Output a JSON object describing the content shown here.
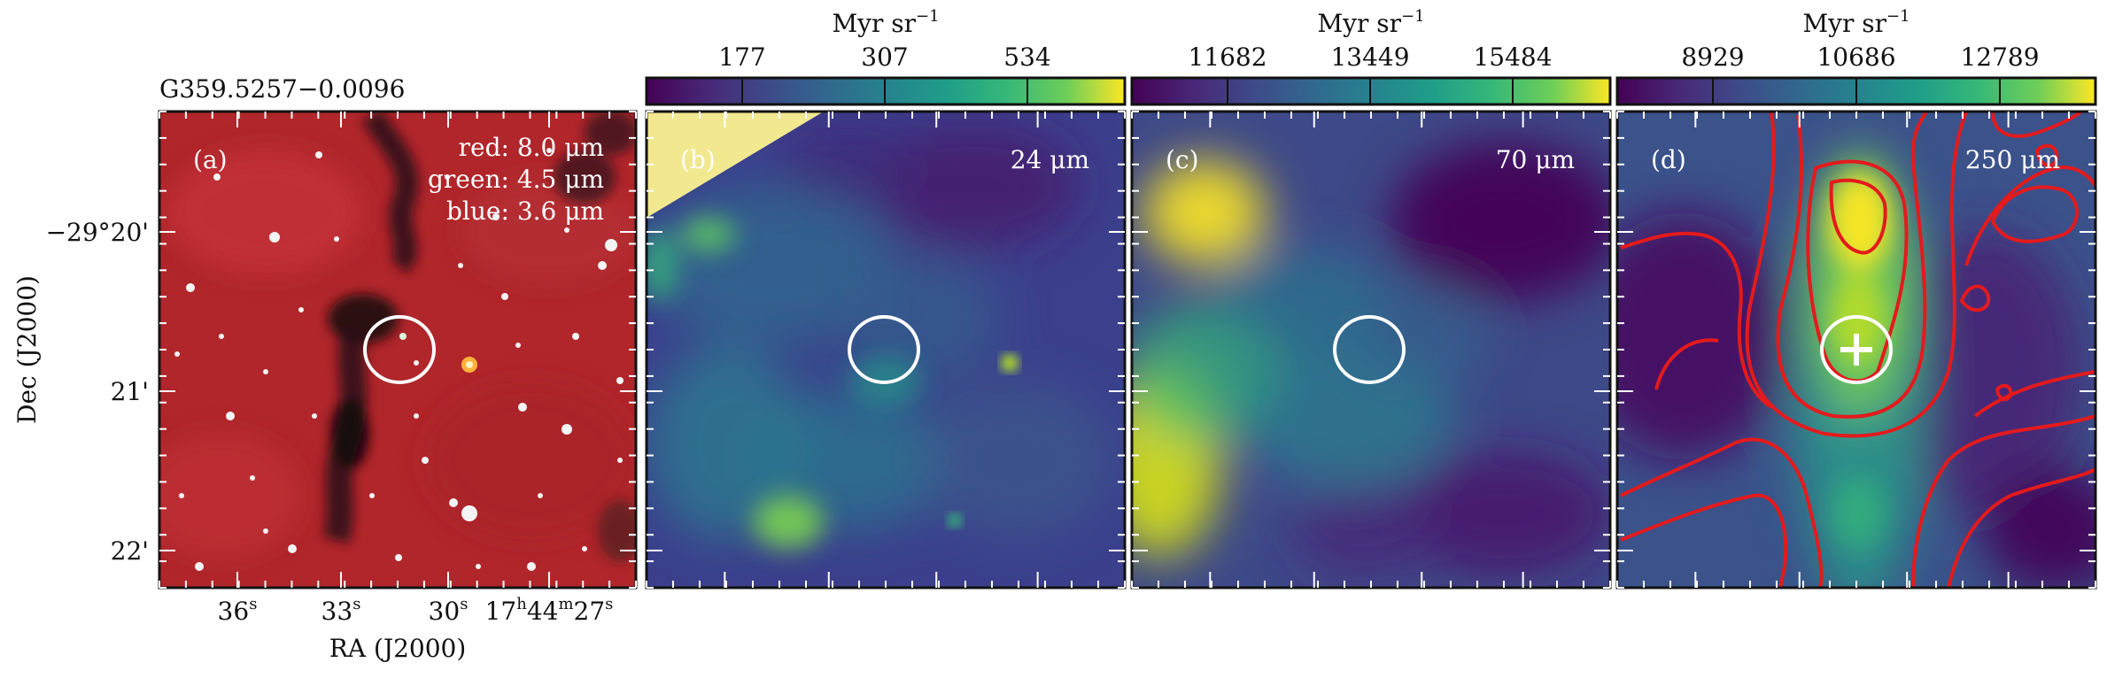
{
  "figure": {
    "field_name": "G359.5257−0.0096",
    "axes": {
      "xlabel": "RA (J2000)",
      "ylabel": "Dec (J2000)",
      "ra_ticks": [
        {
          "main": "36",
          "sup": "s"
        },
        {
          "main": "33",
          "sup": "s"
        },
        {
          "main": "30",
          "sup": "s"
        },
        {
          "main": "17",
          "sup": "h",
          "main2": "44",
          "sup2": "m",
          "main3": "27",
          "sup3": "s"
        }
      ],
      "dec_ticks": [
        "−29°20'",
        "21'",
        "22'"
      ]
    },
    "panels": [
      {
        "id": "a",
        "label": "(a)",
        "legend": [
          "red: 8.0 μm",
          "green: 4.5 μm",
          "blue: 3.6 μm"
        ]
      },
      {
        "id": "b",
        "label": "(b)",
        "band": "24 μm",
        "colorbar": {
          "unit_main": "Myr sr",
          "unit_sup": "−1",
          "ticks": [
            "177",
            "307",
            "534"
          ]
        }
      },
      {
        "id": "c",
        "label": "(c)",
        "band": "70 μm",
        "colorbar": {
          "unit_main": "Myr sr",
          "unit_sup": "−1",
          "ticks": [
            "11682",
            "13449",
            "15484"
          ]
        }
      },
      {
        "id": "d",
        "label": "(d)",
        "band": "250 μm",
        "colorbar": {
          "unit_main": "Myr sr",
          "unit_sup": "−1",
          "ticks": [
            "8929",
            "10686",
            "12789"
          ]
        }
      }
    ],
    "colors": {
      "viridis_low": "#440154",
      "viridis_mid": "#21918c",
      "viridis_high": "#fde725",
      "contour": "#e41a1c",
      "marker": "#ffffff",
      "rgb_base": "#b0262b",
      "masked_region": "#f1e890"
    },
    "markers": {
      "circle": "source aperture",
      "plus": "source position"
    }
  }
}
